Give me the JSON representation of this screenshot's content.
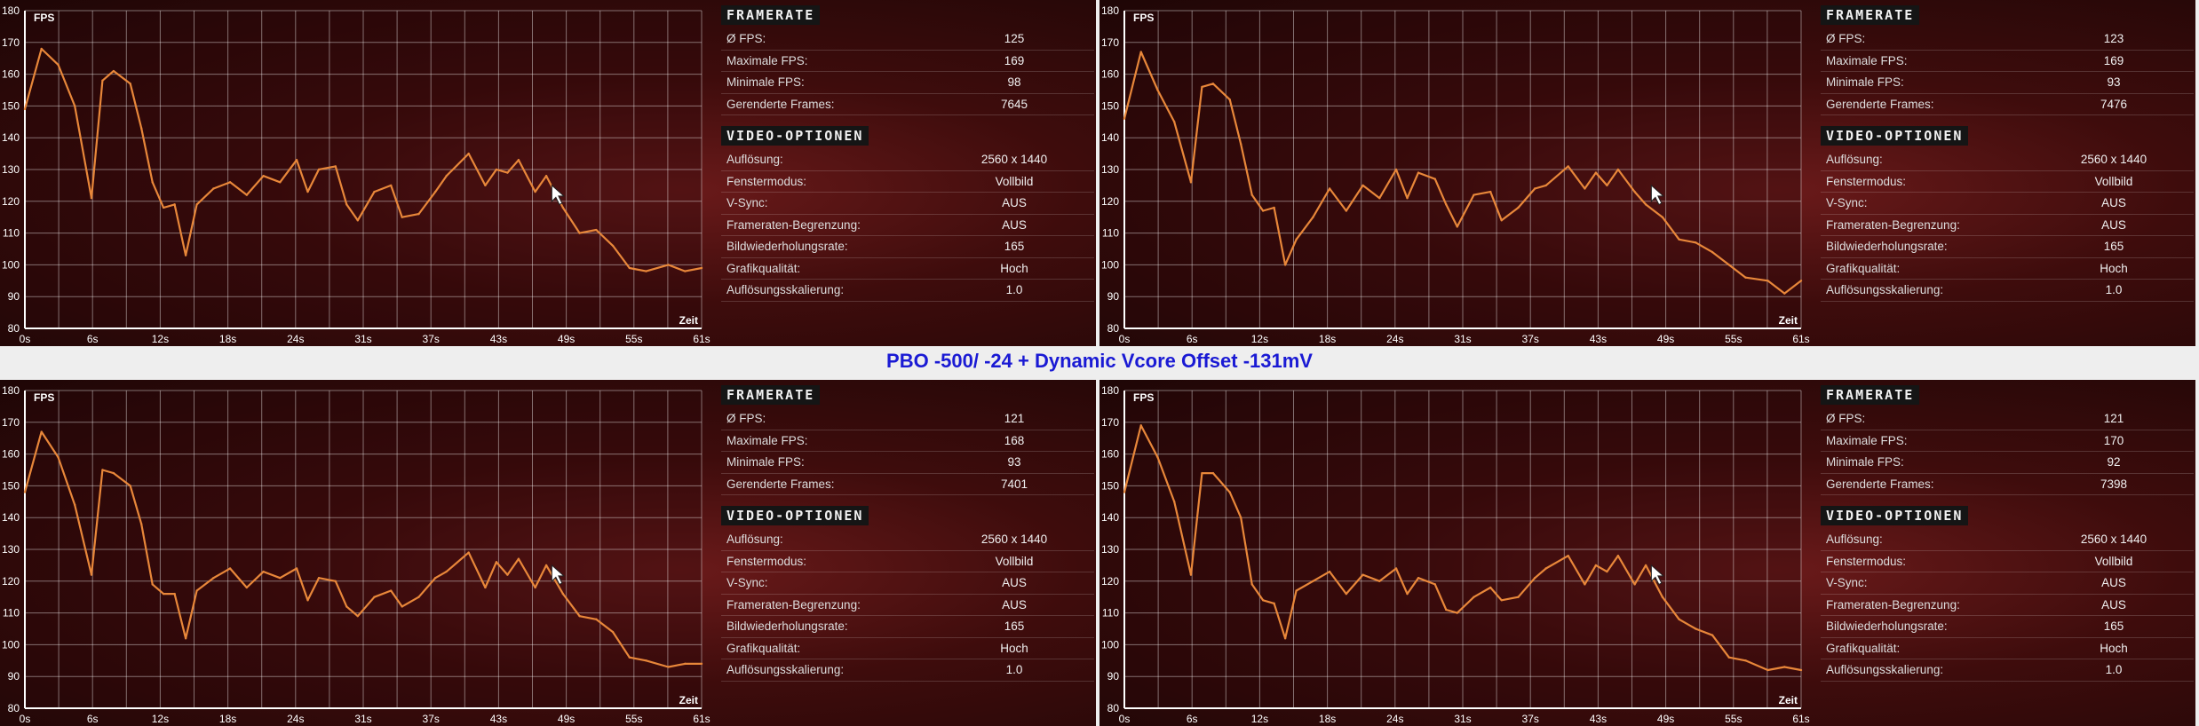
{
  "caption": "PBO -500/ -24 + Dynamic Vcore Offset -131mV",
  "labels": {
    "framerate_header": "FRAMERATE",
    "video_header": "VIDEO-OPTIONEN",
    "avg_fps": "Ø FPS:",
    "max_fps": "Maximale FPS:",
    "min_fps": "Minimale FPS:",
    "frames": "Gerenderte Frames:",
    "resolution": "Auflösung:",
    "window_mode": "Fenstermodus:",
    "vsync": "V-Sync:",
    "fps_limit": "Frameraten-Begrenzung:",
    "refresh": "Bildwiederholungsrate:",
    "quality": "Grafikqualität:",
    "scaling": "Auflösungsskalierung:"
  },
  "panels": [
    {
      "avg_fps": "125",
      "max_fps": "169",
      "min_fps": "98",
      "frames": "7645",
      "resolution": "2560 x 1440",
      "window_mode": "Vollbild",
      "vsync": "AUS",
      "fps_limit": "AUS",
      "refresh": "165",
      "quality": "Hoch",
      "scaling": "1.0"
    },
    {
      "avg_fps": "123",
      "max_fps": "169",
      "min_fps": "93",
      "frames": "7476",
      "resolution": "2560 x 1440",
      "window_mode": "Vollbild",
      "vsync": "AUS",
      "fps_limit": "AUS",
      "refresh": "165",
      "quality": "Hoch",
      "scaling": "1.0"
    },
    {
      "avg_fps": "121",
      "max_fps": "168",
      "min_fps": "93",
      "frames": "7401",
      "resolution": "2560 x 1440",
      "window_mode": "Vollbild",
      "vsync": "AUS",
      "fps_limit": "AUS",
      "refresh": "165",
      "quality": "Hoch",
      "scaling": "1.0"
    },
    {
      "avg_fps": "121",
      "max_fps": "170",
      "min_fps": "92",
      "frames": "7398",
      "resolution": "2560 x 1440",
      "window_mode": "Vollbild",
      "vsync": "AUS",
      "fps_limit": "AUS",
      "refresh": "165",
      "quality": "Hoch",
      "scaling": "1.0"
    }
  ],
  "chart_data": [
    {
      "type": "line",
      "ylabel": "FPS",
      "xlabel": "Zeit",
      "ylim": [
        80,
        180
      ],
      "yticks": [
        80,
        90,
        100,
        110,
        120,
        130,
        140,
        150,
        160,
        170,
        180
      ],
      "xticks": [
        "0s",
        "6s",
        "12s",
        "18s",
        "24s",
        "31s",
        "37s",
        "43s",
        "49s",
        "55s",
        "61s"
      ],
      "xlim": [
        0,
        61
      ],
      "grid": true,
      "line_color": "#e8873a",
      "x": [
        0,
        1.5,
        3,
        4.5,
        6,
        7,
        8,
        9.5,
        10.5,
        11.5,
        12.5,
        13.5,
        14.5,
        15.5,
        17,
        18.5,
        20,
        21.5,
        23,
        24.5,
        25.5,
        26.5,
        28,
        29,
        30,
        31.5,
        33,
        34,
        35.5,
        37,
        38,
        40,
        41.5,
        42.5,
        43.5,
        44.5,
        46,
        47,
        48.5,
        50,
        51.5,
        53,
        54.5,
        56,
        58,
        59.5,
        61
      ],
      "y": [
        149,
        168,
        163,
        150,
        121,
        158,
        161,
        157,
        143,
        126,
        118,
        119,
        103,
        119,
        124,
        126,
        122,
        128,
        126,
        133,
        123,
        130,
        131,
        119,
        114,
        123,
        125,
        115,
        116,
        123,
        128,
        135,
        125,
        130,
        129,
        133,
        123,
        128,
        118,
        110,
        111,
        106,
        99,
        98,
        100,
        98,
        99
      ]
    },
    {
      "type": "line",
      "ylabel": "FPS",
      "xlabel": "Zeit",
      "ylim": [
        80,
        180
      ],
      "yticks": [
        80,
        90,
        100,
        110,
        120,
        130,
        140,
        150,
        160,
        170,
        180
      ],
      "xticks": [
        "0s",
        "6s",
        "12s",
        "18s",
        "24s",
        "31s",
        "37s",
        "43s",
        "49s",
        "55s",
        "61s"
      ],
      "xlim": [
        0,
        61
      ],
      "grid": true,
      "line_color": "#e8873a",
      "x": [
        0,
        1.5,
        3,
        4.5,
        6,
        7,
        8,
        9.5,
        10.5,
        11.5,
        12.5,
        13.5,
        14.5,
        15.5,
        17,
        18.5,
        20,
        21.5,
        23,
        24.5,
        25.5,
        26.5,
        28,
        29,
        30,
        31.5,
        33,
        34,
        35.5,
        37,
        38,
        40,
        41.5,
        42.5,
        43.5,
        44.5,
        46,
        47,
        48.5,
        50,
        51.5,
        53,
        54.5,
        56,
        58,
        59.5,
        61
      ],
      "y": [
        146,
        167,
        155,
        145,
        126,
        156,
        157,
        152,
        138,
        122,
        117,
        118,
        100,
        108,
        115,
        124,
        117,
        125,
        121,
        130,
        121,
        129,
        127,
        119,
        112,
        122,
        123,
        114,
        118,
        124,
        125,
        131,
        124,
        129,
        125,
        130,
        123,
        119,
        115,
        108,
        107,
        104,
        100,
        96,
        95,
        91,
        95
      ]
    },
    {
      "type": "line",
      "ylabel": "FPS",
      "xlabel": "Zeit",
      "ylim": [
        80,
        180
      ],
      "yticks": [
        80,
        90,
        100,
        110,
        120,
        130,
        140,
        150,
        160,
        170,
        180
      ],
      "xticks": [
        "0s",
        "6s",
        "12s",
        "18s",
        "24s",
        "31s",
        "37s",
        "43s",
        "49s",
        "55s",
        "61s"
      ],
      "xlim": [
        0,
        61
      ],
      "grid": true,
      "line_color": "#e8873a",
      "x": [
        0,
        1.5,
        3,
        4.5,
        6,
        7,
        8,
        9.5,
        10.5,
        11.5,
        12.5,
        13.5,
        14.5,
        15.5,
        17,
        18.5,
        20,
        21.5,
        23,
        24.5,
        25.5,
        26.5,
        28,
        29,
        30,
        31.5,
        33,
        34,
        35.5,
        37,
        38,
        40,
        41.5,
        42.5,
        43.5,
        44.5,
        46,
        47,
        48.5,
        50,
        51.5,
        53,
        54.5,
        56,
        58,
        59.5,
        61
      ],
      "y": [
        148,
        167,
        159,
        144,
        122,
        155,
        154,
        150,
        138,
        119,
        116,
        116,
        102,
        117,
        121,
        124,
        118,
        123,
        121,
        124,
        114,
        121,
        120,
        112,
        109,
        115,
        117,
        112,
        115,
        121,
        123,
        129,
        118,
        126,
        122,
        127,
        118,
        125,
        116,
        109,
        108,
        104,
        96,
        95,
        93,
        94,
        94
      ]
    },
    {
      "type": "line",
      "ylabel": "FPS",
      "xlabel": "Zeit",
      "ylim": [
        80,
        180
      ],
      "yticks": [
        80,
        90,
        100,
        110,
        120,
        130,
        140,
        150,
        160,
        170,
        180
      ],
      "xticks": [
        "0s",
        "6s",
        "12s",
        "18s",
        "24s",
        "31s",
        "37s",
        "43s",
        "49s",
        "55s",
        "61s"
      ],
      "xlim": [
        0,
        61
      ],
      "grid": true,
      "line_color": "#e8873a",
      "x": [
        0,
        1.5,
        3,
        4.5,
        6,
        7,
        8,
        9.5,
        10.5,
        11.5,
        12.5,
        13.5,
        14.5,
        15.5,
        17,
        18.5,
        20,
        21.5,
        23,
        24.5,
        25.5,
        26.5,
        28,
        29,
        30,
        31.5,
        33,
        34,
        35.5,
        37,
        38,
        40,
        41.5,
        42.5,
        43.5,
        44.5,
        46,
        47,
        48.5,
        50,
        51.5,
        53,
        54.5,
        56,
        58,
        59.5,
        61
      ],
      "y": [
        148,
        169,
        159,
        145,
        122,
        154,
        154,
        148,
        140,
        119,
        114,
        113,
        102,
        117,
        120,
        123,
        116,
        122,
        120,
        124,
        116,
        121,
        119,
        111,
        110,
        115,
        118,
        114,
        115,
        121,
        124,
        128,
        119,
        125,
        123,
        128,
        119,
        125,
        115,
        108,
        105,
        103,
        96,
        95,
        92,
        93,
        92
      ]
    }
  ]
}
